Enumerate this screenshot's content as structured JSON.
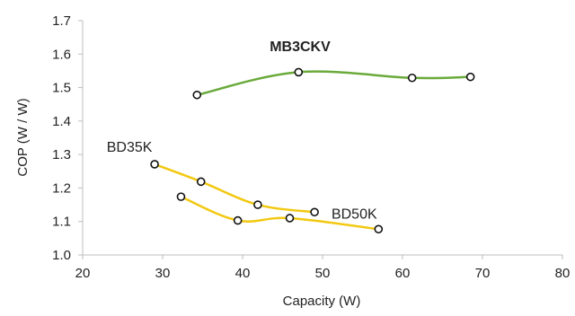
{
  "chart_data": {
    "type": "line",
    "title": "",
    "xlabel": "Capacity (W)",
    "ylabel": "COP (W / W)",
    "xlim": [
      20,
      80
    ],
    "ylim": [
      1.0,
      1.7
    ],
    "x_ticks": [
      "20",
      "30",
      "40",
      "50",
      "60",
      "70",
      "80"
    ],
    "y_ticks": [
      "1.0",
      "1.1",
      "1.2",
      "1.3",
      "1.4",
      "1.5",
      "1.6",
      "1.7"
    ],
    "grid": false,
    "series": [
      {
        "name": "MB3CKV",
        "color": "#6aaa3a",
        "label_bold": true,
        "points": [
          [
            34.3,
            1.478
          ],
          [
            47.0,
            1.546
          ],
          [
            61.2,
            1.529
          ],
          [
            68.5,
            1.532
          ]
        ]
      },
      {
        "name": "BD35K",
        "color": "#f2c811",
        "label_bold": false,
        "points": [
          [
            29.0,
            1.271
          ],
          [
            34.8,
            1.219
          ],
          [
            41.9,
            1.15
          ],
          [
            49.0,
            1.128
          ]
        ]
      },
      {
        "name": "BD50K",
        "color": "#f2c811",
        "label_bold": false,
        "points": [
          [
            32.3,
            1.174
          ],
          [
            39.4,
            1.103
          ],
          [
            45.9,
            1.11
          ],
          [
            57.0,
            1.077
          ]
        ]
      }
    ]
  }
}
